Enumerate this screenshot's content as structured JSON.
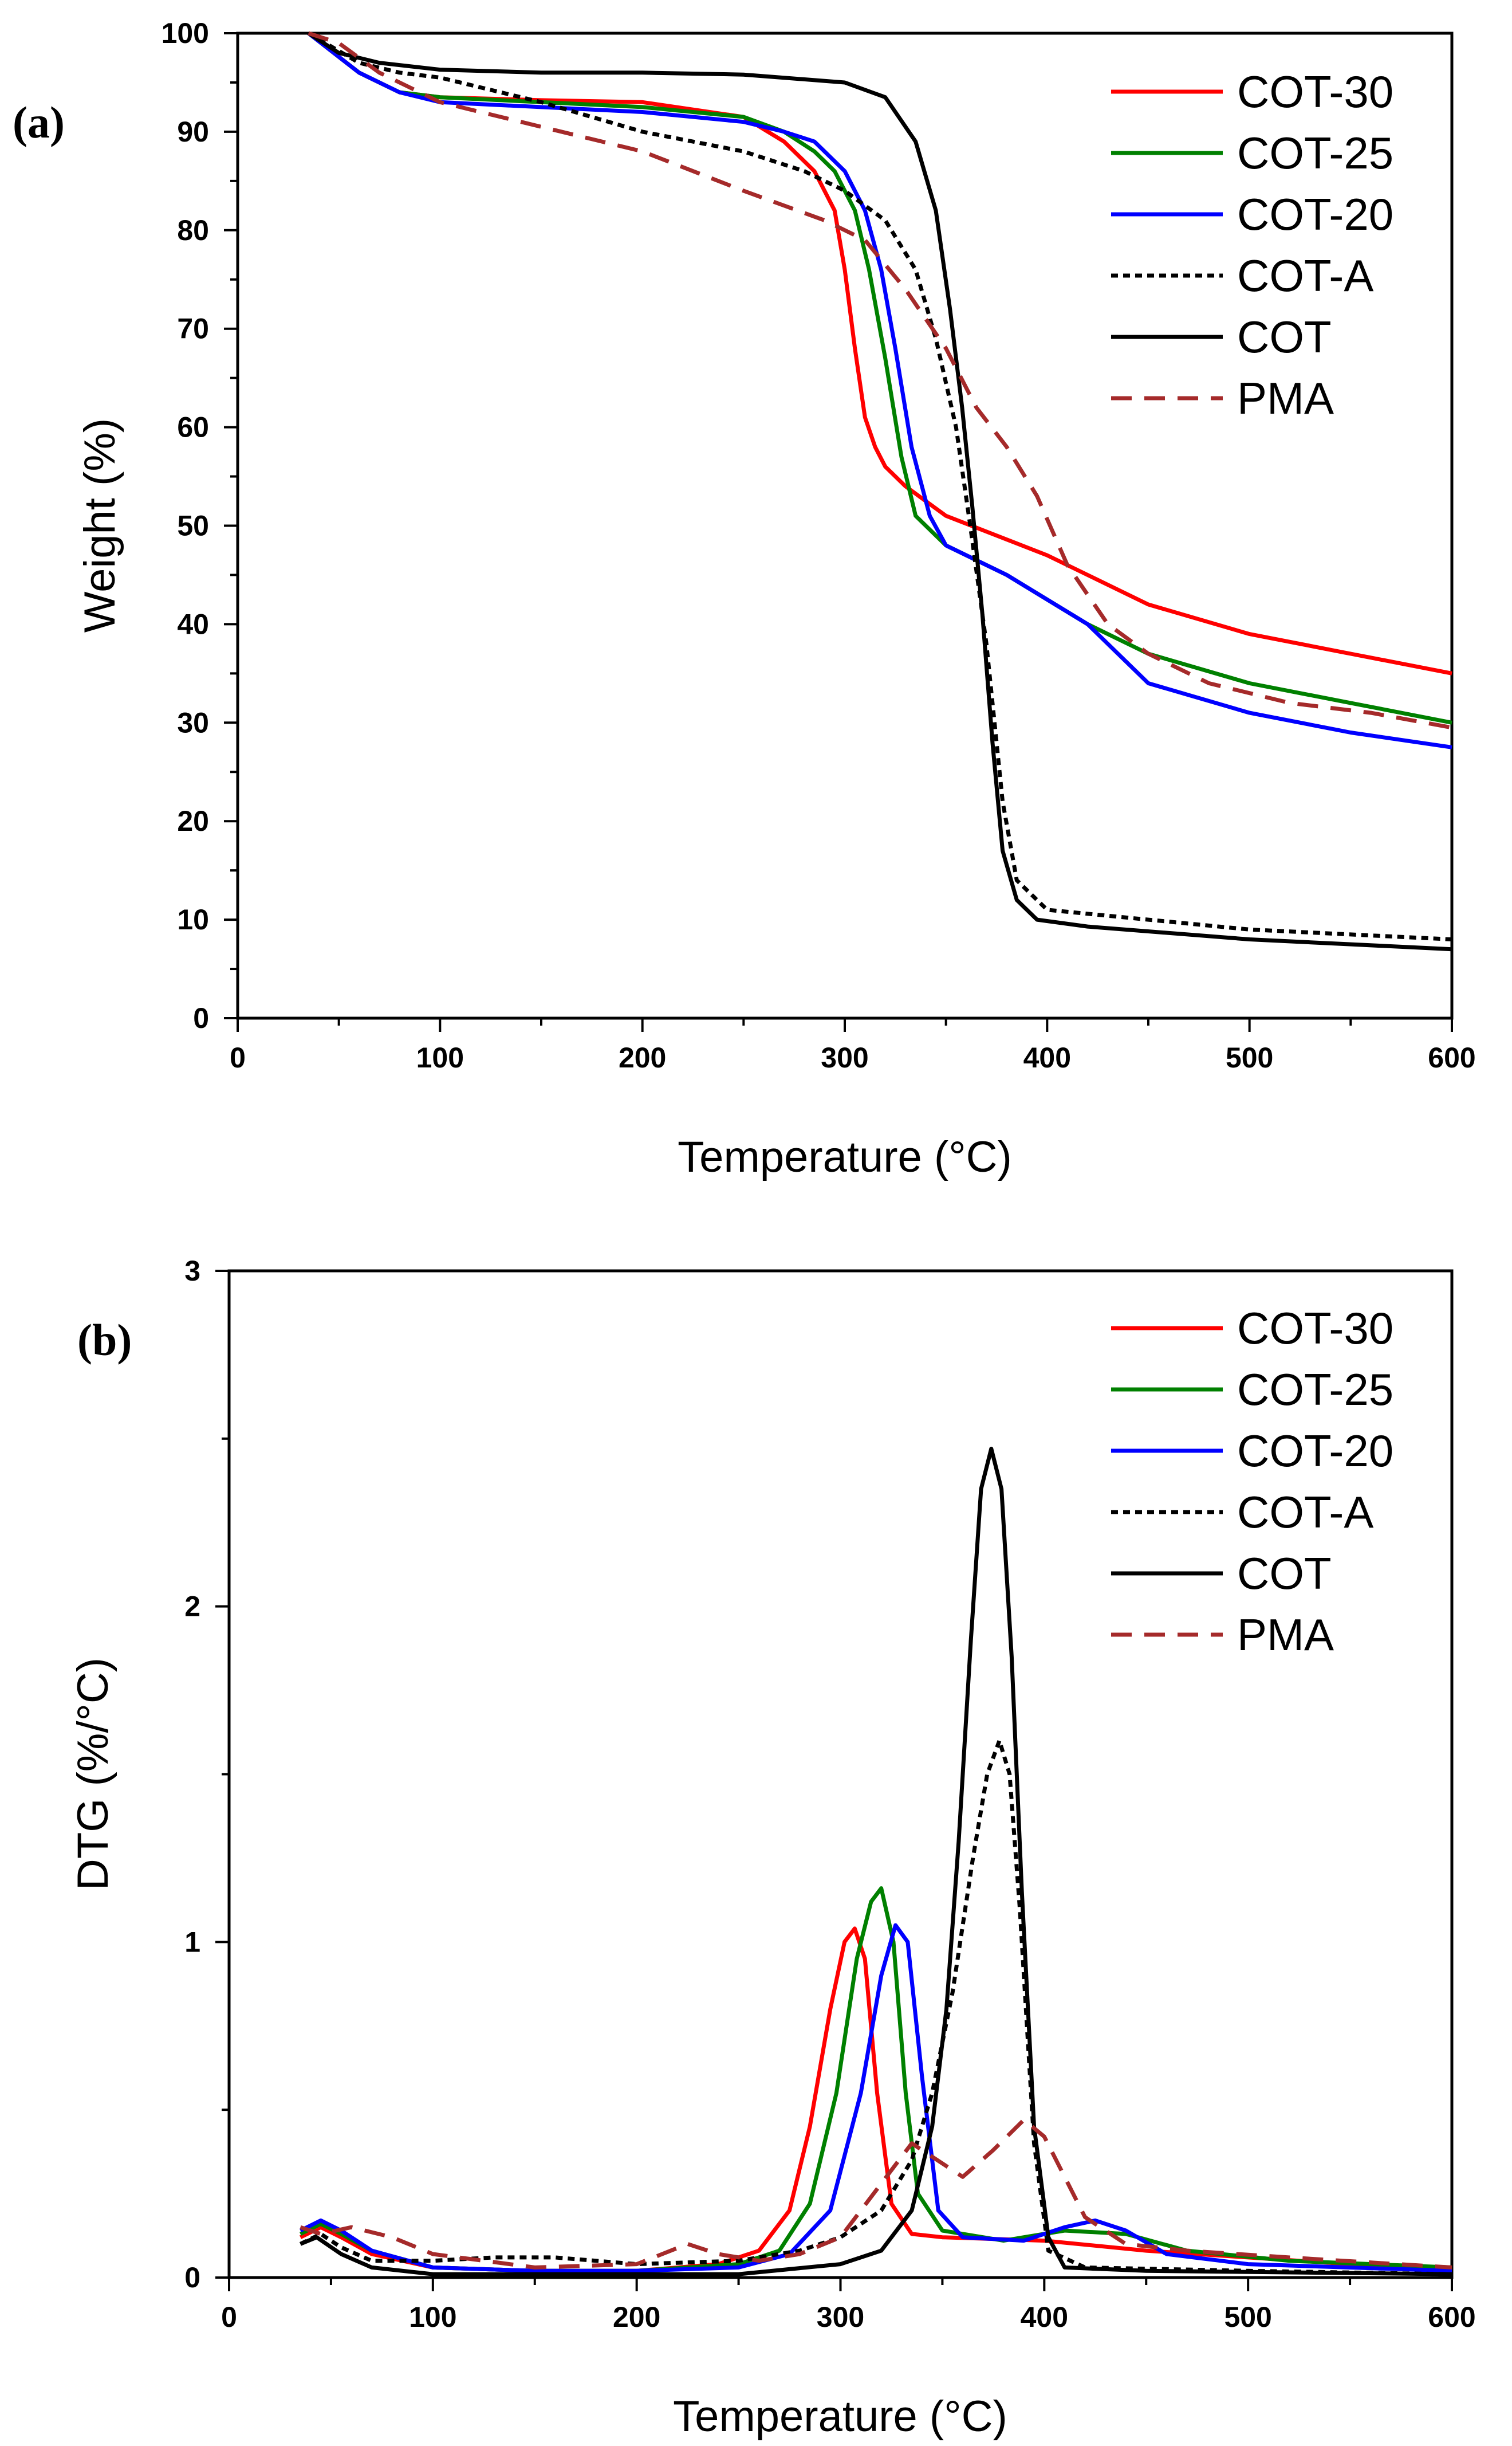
{
  "chart_data": [
    {
      "panel": "(a)",
      "type": "line",
      "xlabel": "Temperature (°C)",
      "ylabel": "Weight (%)",
      "xlim": [
        0,
        600
      ],
      "ylim": [
        0,
        100
      ],
      "xticks": [
        "0",
        "100",
        "200",
        "300",
        "400",
        "500",
        "600"
      ],
      "yticks": [
        "0",
        "10",
        "20",
        "30",
        "40",
        "50",
        "60",
        "70",
        "80",
        "90",
        "100"
      ],
      "legend_position": "top-right",
      "series": [
        {
          "name": "COT-30",
          "color": "#ff0000",
          "dash": "solid",
          "x": [
            35,
            60,
            80,
            100,
            150,
            200,
            250,
            270,
            285,
            295,
            300,
            305,
            310,
            315,
            320,
            330,
            350,
            400,
            450,
            500,
            550,
            600
          ],
          "y": [
            100,
            96,
            94,
            93.5,
            93.2,
            93,
            91.5,
            89,
            86,
            82,
            76,
            68,
            61,
            58,
            56,
            54,
            51,
            47,
            42,
            39,
            37,
            35
          ]
        },
        {
          "name": "COT-25",
          "color": "#008000",
          "dash": "solid",
          "x": [
            35,
            60,
            80,
            100,
            150,
            200,
            250,
            270,
            285,
            295,
            305,
            312,
            320,
            328,
            335,
            350,
            380,
            420,
            450,
            500,
            550,
            600
          ],
          "y": [
            100,
            96,
            94,
            93.5,
            93,
            92.5,
            91.5,
            90,
            88,
            86,
            82,
            76,
            67,
            57,
            51,
            48,
            45,
            40,
            37,
            34,
            32,
            30
          ]
        },
        {
          "name": "COT-20",
          "color": "#0000ff",
          "dash": "solid",
          "x": [
            35,
            60,
            80,
            100,
            150,
            200,
            250,
            270,
            285,
            300,
            310,
            318,
            325,
            333,
            342,
            350,
            380,
            420,
            450,
            500,
            550,
            600
          ],
          "y": [
            100,
            96,
            94,
            93,
            92.5,
            92,
            91,
            90,
            89,
            86,
            82,
            76,
            68,
            58,
            51,
            48,
            45,
            40,
            34,
            31,
            29,
            27.5
          ]
        },
        {
          "name": "COT-A",
          "color": "#000000",
          "dash": "dotted",
          "x": [
            35,
            60,
            80,
            100,
            150,
            200,
            250,
            280,
            300,
            320,
            335,
            345,
            355,
            362,
            370,
            378,
            385,
            400,
            450,
            500,
            550,
            600
          ],
          "y": [
            100,
            97,
            96,
            95.5,
            93,
            90,
            88,
            86,
            84,
            81,
            76,
            69,
            60,
            50,
            38,
            22,
            14,
            11,
            10,
            9,
            8.5,
            8
          ]
        },
        {
          "name": "COT",
          "color": "#000000",
          "dash": "solid",
          "x": [
            35,
            50,
            70,
            100,
            150,
            200,
            250,
            300,
            320,
            335,
            345,
            352,
            358,
            363,
            368,
            373,
            378,
            385,
            395,
            420,
            500,
            600
          ],
          "y": [
            100,
            98,
            97,
            96.3,
            96,
            96,
            95.8,
            95,
            93.5,
            89,
            82,
            72,
            62,
            52,
            41,
            28,
            17,
            12,
            10,
            9.3,
            8,
            7
          ]
        },
        {
          "name": "PMA",
          "color": "#a52a2a",
          "dash": "dashed",
          "x": [
            35,
            50,
            70,
            100,
            150,
            200,
            250,
            290,
            310,
            330,
            350,
            365,
            380,
            395,
            410,
            430,
            450,
            480,
            520,
            560,
            600
          ],
          "y": [
            100,
            99,
            96,
            93,
            90.5,
            88,
            84,
            81,
            79,
            74,
            68,
            62,
            58,
            53,
            46,
            40,
            37,
            34,
            32,
            31,
            29.5
          ]
        }
      ]
    },
    {
      "panel": "(b)",
      "type": "line",
      "xlabel": "Temperature (°C)",
      "ylabel": "DTG (%/°C)",
      "xlim": [
        0,
        600
      ],
      "ylim": [
        0,
        3
      ],
      "xticks": [
        "0",
        "100",
        "200",
        "300",
        "400",
        "500",
        "600"
      ],
      "yticks": [
        "0",
        "1",
        "2",
        "3"
      ],
      "legend_position": "top-right",
      "series": [
        {
          "name": "COT-30",
          "color": "#ff0000",
          "dash": "solid",
          "x": [
            35,
            45,
            55,
            70,
            100,
            150,
            200,
            240,
            260,
            275,
            285,
            295,
            302,
            307,
            312,
            318,
            325,
            335,
            350,
            400,
            450,
            500,
            550,
            600
          ],
          "y": [
            0.12,
            0.15,
            0.12,
            0.07,
            0.03,
            0.02,
            0.02,
            0.04,
            0.08,
            0.2,
            0.45,
            0.8,
            1.0,
            1.04,
            0.95,
            0.55,
            0.22,
            0.13,
            0.12,
            0.11,
            0.08,
            0.06,
            0.04,
            0.02
          ]
        },
        {
          "name": "COT-25",
          "color": "#008000",
          "dash": "solid",
          "x": [
            35,
            45,
            55,
            70,
            100,
            150,
            200,
            250,
            270,
            285,
            298,
            308,
            315,
            320,
            326,
            332,
            338,
            350,
            380,
            410,
            440,
            470,
            520,
            600
          ],
          "y": [
            0.13,
            0.16,
            0.13,
            0.08,
            0.03,
            0.02,
            0.02,
            0.04,
            0.08,
            0.22,
            0.55,
            0.95,
            1.12,
            1.16,
            1.0,
            0.55,
            0.25,
            0.14,
            0.11,
            0.14,
            0.13,
            0.08,
            0.05,
            0.03
          ]
        },
        {
          "name": "COT-20",
          "color": "#0000ff",
          "dash": "solid",
          "x": [
            35,
            45,
            55,
            70,
            100,
            150,
            200,
            250,
            275,
            295,
            310,
            320,
            327,
            333,
            340,
            348,
            360,
            390,
            410,
            425,
            440,
            460,
            500,
            600
          ],
          "y": [
            0.14,
            0.17,
            0.14,
            0.08,
            0.03,
            0.02,
            0.02,
            0.03,
            0.07,
            0.2,
            0.55,
            0.9,
            1.05,
            1.0,
            0.6,
            0.2,
            0.12,
            0.11,
            0.15,
            0.17,
            0.14,
            0.07,
            0.04,
            0.02
          ]
        },
        {
          "name": "COT-A",
          "color": "#000000",
          "dash": "dotted",
          "x": [
            35,
            45,
            55,
            70,
            100,
            130,
            160,
            200,
            250,
            280,
            300,
            320,
            335,
            345,
            355,
            365,
            372,
            378,
            383,
            388,
            395,
            402,
            420,
            500,
            600
          ],
          "y": [
            0.1,
            0.13,
            0.09,
            0.05,
            0.05,
            0.06,
            0.06,
            0.04,
            0.05,
            0.08,
            0.12,
            0.2,
            0.35,
            0.55,
            0.85,
            1.25,
            1.5,
            1.6,
            1.5,
            1.1,
            0.4,
            0.08,
            0.03,
            0.02,
            0.01
          ]
        },
        {
          "name": "COT",
          "color": "#000000",
          "dash": "solid",
          "x": [
            35,
            43,
            55,
            70,
            100,
            150,
            200,
            250,
            300,
            320,
            335,
            345,
            352,
            358,
            364,
            369,
            374,
            379,
            384,
            389,
            395,
            402,
            410,
            450,
            600
          ],
          "y": [
            0.1,
            0.12,
            0.07,
            0.03,
            0.01,
            0.01,
            0.01,
            0.01,
            0.04,
            0.08,
            0.2,
            0.45,
            0.8,
            1.3,
            1.9,
            2.35,
            2.47,
            2.35,
            1.85,
            1.15,
            0.45,
            0.12,
            0.03,
            0.02,
            0.01
          ]
        },
        {
          "name": "PMA",
          "color": "#a52a2a",
          "dash": "dashed",
          "x": [
            35,
            45,
            60,
            80,
            100,
            150,
            200,
            225,
            240,
            260,
            280,
            300,
            320,
            335,
            345,
            360,
            375,
            390,
            400,
            410,
            420,
            440,
            470,
            520,
            600
          ],
          "y": [
            0.15,
            0.13,
            0.15,
            0.12,
            0.07,
            0.03,
            0.04,
            0.1,
            0.07,
            0.05,
            0.07,
            0.12,
            0.28,
            0.4,
            0.36,
            0.3,
            0.38,
            0.47,
            0.42,
            0.3,
            0.18,
            0.1,
            0.08,
            0.06,
            0.03
          ]
        }
      ]
    }
  ]
}
